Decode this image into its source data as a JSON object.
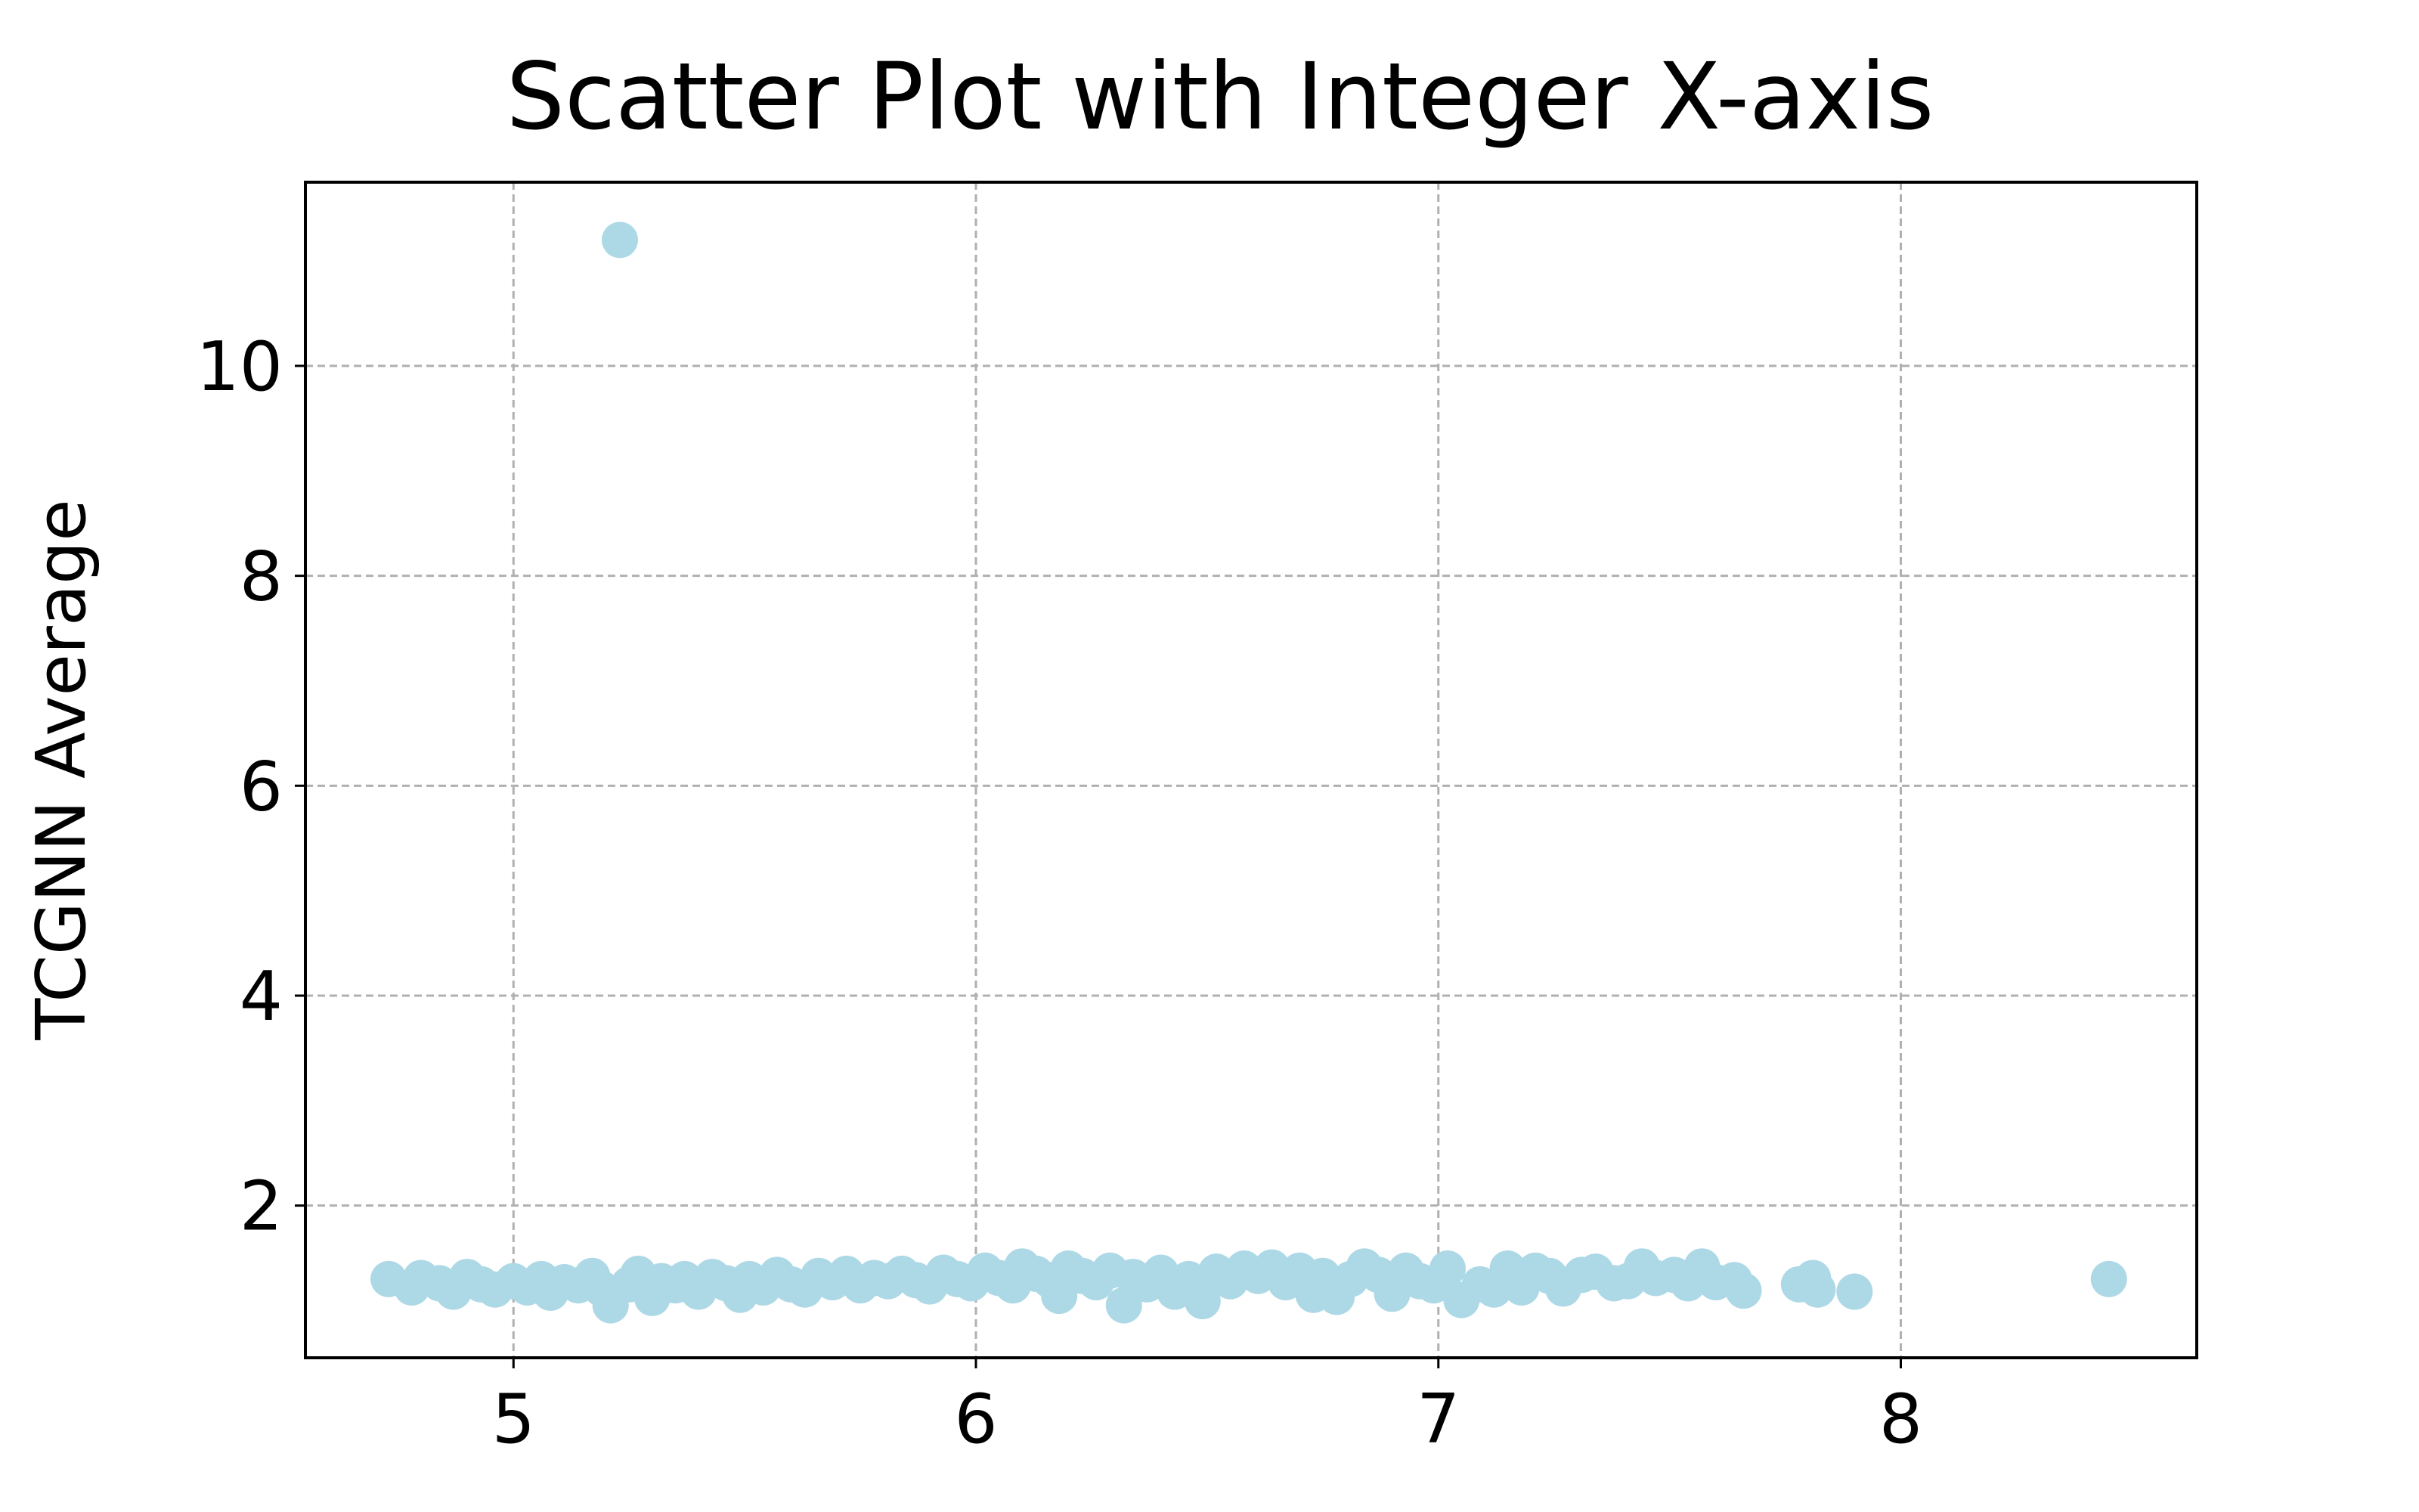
{
  "chart_data": {
    "type": "scatter",
    "title": "Scatter Plot with Integer X-axis",
    "xlabel": "",
    "ylabel": "TCGNN Average",
    "xlim": [
      4.55,
      8.64
    ],
    "ylim": [
      0.55,
      11.75
    ],
    "xticks": [
      5,
      6,
      7,
      8
    ],
    "yticks": [
      2,
      4,
      6,
      8,
      10
    ],
    "grid": true,
    "marker_color": "#add8e6",
    "series": [
      {
        "points": [
          [
            4.73,
            1.3
          ],
          [
            4.78,
            1.22
          ],
          [
            4.8,
            1.31
          ],
          [
            4.84,
            1.26
          ],
          [
            4.87,
            1.18
          ],
          [
            4.9,
            1.32
          ],
          [
            4.93,
            1.25
          ],
          [
            4.96,
            1.2
          ],
          [
            5.0,
            1.28
          ],
          [
            5.03,
            1.22
          ],
          [
            5.06,
            1.3
          ],
          [
            5.08,
            1.17
          ],
          [
            5.11,
            1.27
          ],
          [
            5.14,
            1.24
          ],
          [
            5.17,
            1.33
          ],
          [
            5.19,
            1.21
          ],
          [
            5.21,
            1.05
          ],
          [
            5.23,
            11.2
          ],
          [
            5.25,
            1.25
          ],
          [
            5.27,
            1.35
          ],
          [
            5.3,
            1.12
          ],
          [
            5.32,
            1.28
          ],
          [
            5.35,
            1.24
          ],
          [
            5.37,
            1.3
          ],
          [
            5.4,
            1.18
          ],
          [
            5.43,
            1.32
          ],
          [
            5.46,
            1.26
          ],
          [
            5.49,
            1.15
          ],
          [
            5.51,
            1.3
          ],
          [
            5.54,
            1.22
          ],
          [
            5.57,
            1.34
          ],
          [
            5.6,
            1.25
          ],
          [
            5.63,
            1.2
          ],
          [
            5.66,
            1.33
          ],
          [
            5.69,
            1.27
          ],
          [
            5.72,
            1.35
          ],
          [
            5.75,
            1.24
          ],
          [
            5.78,
            1.31
          ],
          [
            5.81,
            1.28
          ],
          [
            5.84,
            1.35
          ],
          [
            5.87,
            1.29
          ],
          [
            5.9,
            1.23
          ],
          [
            5.93,
            1.36
          ],
          [
            5.96,
            1.3
          ],
          [
            5.99,
            1.26
          ],
          [
            6.02,
            1.38
          ],
          [
            6.05,
            1.31
          ],
          [
            6.08,
            1.24
          ],
          [
            6.1,
            1.42
          ],
          [
            6.13,
            1.35
          ],
          [
            6.16,
            1.29
          ],
          [
            6.18,
            1.14
          ],
          [
            6.2,
            1.4
          ],
          [
            6.23,
            1.33
          ],
          [
            6.26,
            1.27
          ],
          [
            6.29,
            1.38
          ],
          [
            6.32,
            1.05
          ],
          [
            6.34,
            1.32
          ],
          [
            6.37,
            1.25
          ],
          [
            6.4,
            1.36
          ],
          [
            6.43,
            1.18
          ],
          [
            6.46,
            1.3
          ],
          [
            6.49,
            1.09
          ],
          [
            6.52,
            1.37
          ],
          [
            6.55,
            1.28
          ],
          [
            6.58,
            1.4
          ],
          [
            6.61,
            1.33
          ],
          [
            6.64,
            1.41
          ],
          [
            6.67,
            1.27
          ],
          [
            6.7,
            1.38
          ],
          [
            6.73,
            1.15
          ],
          [
            6.75,
            1.33
          ],
          [
            6.78,
            1.13
          ],
          [
            6.81,
            1.3
          ],
          [
            6.84,
            1.42
          ],
          [
            6.87,
            1.34
          ],
          [
            6.9,
            1.16
          ],
          [
            6.93,
            1.38
          ],
          [
            6.96,
            1.28
          ],
          [
            6.99,
            1.24
          ],
          [
            7.02,
            1.4
          ],
          [
            7.05,
            1.1
          ],
          [
            7.09,
            1.25
          ],
          [
            7.12,
            1.2
          ],
          [
            7.15,
            1.4
          ],
          [
            7.18,
            1.22
          ],
          [
            7.21,
            1.38
          ],
          [
            7.24,
            1.33
          ],
          [
            7.27,
            1.21
          ],
          [
            7.31,
            1.34
          ],
          [
            7.34,
            1.37
          ],
          [
            7.38,
            1.26
          ],
          [
            7.41,
            1.28
          ],
          [
            7.44,
            1.42
          ],
          [
            7.47,
            1.31
          ],
          [
            7.51,
            1.34
          ],
          [
            7.54,
            1.26
          ],
          [
            7.57,
            1.42
          ],
          [
            7.6,
            1.27
          ],
          [
            7.64,
            1.29
          ],
          [
            7.66,
            1.19
          ],
          [
            7.78,
            1.25
          ],
          [
            7.81,
            1.31
          ],
          [
            7.82,
            1.2
          ],
          [
            7.9,
            1.18
          ],
          [
            8.45,
            1.3
          ]
        ]
      }
    ]
  }
}
